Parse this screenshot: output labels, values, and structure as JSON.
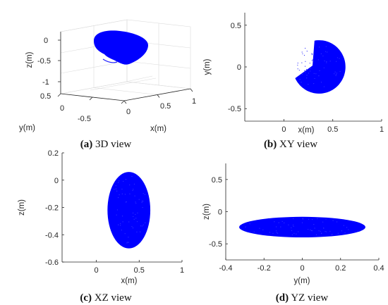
{
  "colors": {
    "points": "#0000ff",
    "axis": "#262626",
    "grid": "#dcdcdc"
  },
  "chart_data": [
    {
      "type": "scatter",
      "view": "3D",
      "caption_letter": "(a)",
      "caption_text": "3D view",
      "xlabel": "x(m)",
      "ylabel": "y(m)",
      "zlabel": "z(m)",
      "xlim": [
        0,
        1
      ],
      "ylim": [
        -0.5,
        0.5
      ],
      "zlim": [
        -1,
        0.3
      ],
      "x_ticks": [
        "0",
        "0.5",
        "1"
      ],
      "y_ticks": [
        "-0.5",
        "0",
        "0.5"
      ],
      "z_ticks": [
        "-1",
        "-0.5",
        "0"
      ],
      "grid": true,
      "ellipsoid": {
        "center": [
          0.35,
          0.0,
          -0.2
        ],
        "semi_axes": [
          0.3,
          0.33,
          0.3
        ],
        "missing_wedge": true
      }
    },
    {
      "type": "scatter",
      "view": "XY",
      "caption_letter": "(b)",
      "caption_text": "XY view",
      "xlabel": "x(m)",
      "ylabel": "y(m)",
      "xlim": [
        -0.4,
        1
      ],
      "ylim": [
        -0.65,
        0.65
      ],
      "x_ticks": [
        "0",
        "0.5",
        "1"
      ],
      "x_tick_values": [
        0,
        0.5,
        1
      ],
      "y_ticks": [
        "-0.5",
        "0",
        "0.5"
      ],
      "y_tick_values": [
        -0.5,
        0,
        0.5
      ],
      "center": [
        0.36,
        0.0
      ],
      "semi_axes": [
        0.27,
        0.32
      ],
      "notch_angle_range_deg": [
        100,
        205
      ]
    },
    {
      "type": "scatter",
      "view": "XZ",
      "caption_letter": "(c)",
      "caption_text": "XZ view",
      "xlabel": "x(m)",
      "ylabel": "z(m)",
      "xlim": [
        -0.4,
        1
      ],
      "ylim": [
        -0.6,
        0.2
      ],
      "x_ticks": [
        "0",
        "0.5",
        "1"
      ],
      "x_tick_values": [
        0,
        0.5,
        1
      ],
      "y_ticks": [
        "-0.6",
        "-0.4",
        "-0.2",
        "0",
        "0.2"
      ],
      "y_tick_values": [
        -0.6,
        -0.4,
        -0.2,
        0,
        0.2
      ],
      "center": [
        0.38,
        -0.22
      ],
      "semi_axes": [
        0.25,
        0.28
      ]
    },
    {
      "type": "scatter",
      "view": "YZ",
      "caption_letter": "(d)",
      "caption_text": "YZ view",
      "xlabel": "y(m)",
      "ylabel": "z(m)",
      "xlim": [
        -0.4,
        0.4
      ],
      "ylim": [
        -0.75,
        0.75
      ],
      "x_ticks": [
        "-0.4",
        "-0.2",
        "0",
        "0.2",
        "0.4"
      ],
      "x_tick_values": [
        -0.4,
        -0.2,
        0,
        0.2,
        0.4
      ],
      "y_ticks": [
        "-0.5",
        "0",
        "0.5"
      ],
      "y_tick_values": [
        -0.5,
        0,
        0.5
      ],
      "center": [
        0.0,
        -0.24
      ],
      "semi_axes": [
        0.33,
        0.16
      ]
    }
  ]
}
